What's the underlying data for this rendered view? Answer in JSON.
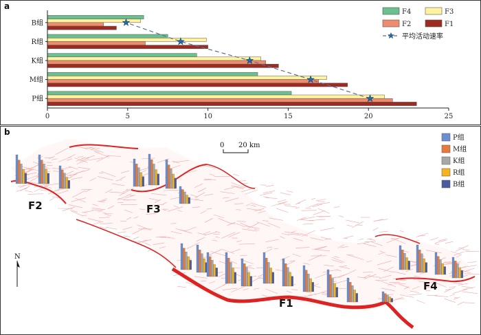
{
  "panel_a": {
    "letter": "a",
    "chart_data": {
      "type": "bar",
      "orientation": "horizontal",
      "categories": [
        "P组",
        "M组",
        "K组",
        "R组",
        "B组"
      ],
      "series": [
        {
          "name": "F4",
          "color": "#6cbf8e",
          "values": [
            15.2,
            13.1,
            9.3,
            7.5,
            6.0
          ]
        },
        {
          "name": "F3",
          "color": "#fff3a0",
          "values": [
            21.0,
            17.4,
            13.3,
            9.9,
            5.8
          ]
        },
        {
          "name": "F2",
          "color": "#f08c6e",
          "values": [
            21.5,
            16.9,
            13.6,
            6.1,
            3.5
          ]
        },
        {
          "name": "F1",
          "color": "#9c2b22",
          "values": [
            23.0,
            18.7,
            14.4,
            10.0,
            4.3
          ]
        }
      ],
      "average": {
        "name": "平均活动速率",
        "values": [
          20.1,
          16.4,
          12.6,
          8.3,
          4.9
        ]
      },
      "xlim": [
        0,
        25
      ],
      "xticks": [
        "0",
        "5",
        "10",
        "15",
        "20",
        "25"
      ],
      "grid": false,
      "legend": "top-right"
    }
  },
  "panel_b": {
    "letter": "b",
    "scale_label_0": "0",
    "scale_label_20": "20 km",
    "north_label": "N",
    "faults": [
      "F1",
      "F2",
      "F3",
      "F4"
    ],
    "legend": [
      {
        "name": "P组",
        "color": "#6b8fd1"
      },
      {
        "name": "M组",
        "color": "#e8793c"
      },
      {
        "name": "K组",
        "color": "#a8a8a8"
      },
      {
        "name": "R组",
        "color": "#f3b41d"
      },
      {
        "name": "B组",
        "color": "#4a5c9e"
      }
    ],
    "colors": {
      "fault_major": "#dd2222",
      "fault_minor": "#f09a9a"
    }
  }
}
